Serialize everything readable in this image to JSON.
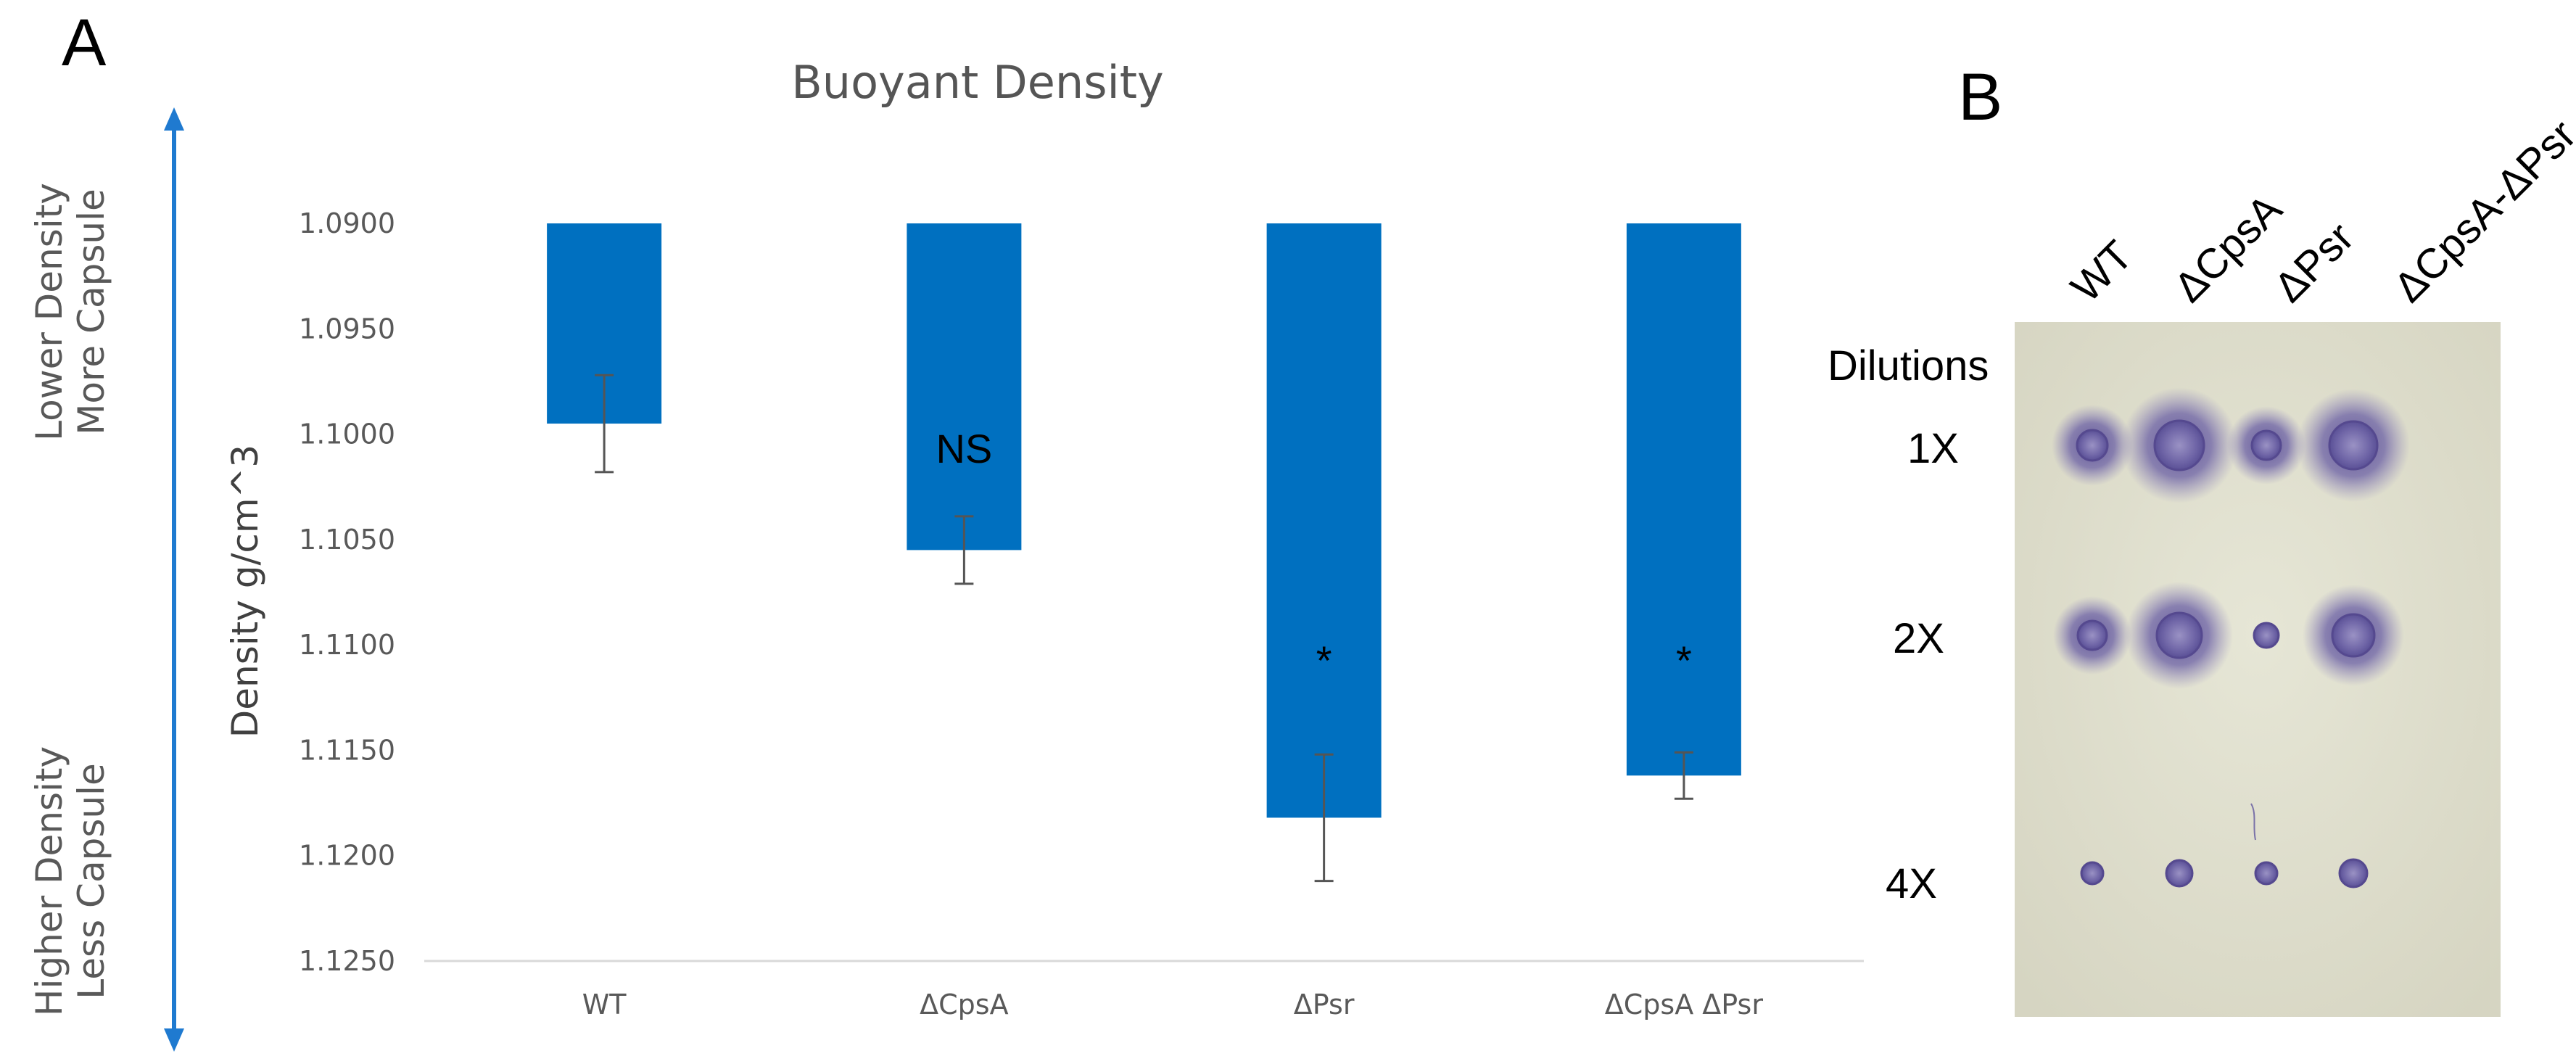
{
  "panel_a_label": "A",
  "panel_b_label": "B",
  "chart_data": {
    "type": "bar",
    "title": "Buoyant Density",
    "ylabel": "Density g/cm^3",
    "y_ticks": [
      "1.0900",
      "1.0950",
      "1.1000",
      "1.1050",
      "1.1100",
      "1.1150",
      "1.1200",
      "1.1250"
    ],
    "ylim": [
      1.09,
      1.125
    ],
    "y_inverted": true,
    "categories": [
      "WT",
      "ΔCpsA",
      "ΔPsr",
      "ΔCpsA ΔPsr"
    ],
    "values": [
      1.0995,
      1.1055,
      1.1182,
      1.1162
    ],
    "errors": [
      0.0023,
      0.0016,
      0.003,
      0.0011
    ],
    "annotations": [
      "",
      "NS",
      "*",
      "*"
    ],
    "bar_color": "#0070C0",
    "top_annotation": [
      "Lower Density",
      "More Capsule"
    ],
    "bottom_annotation": [
      "Higher Density",
      "Less Capsule"
    ],
    "arrow_color": "#1F7AD0"
  },
  "panel_b": {
    "columns": [
      "WT",
      "ΔCpsA",
      "ΔPsr",
      "ΔCpsA-ΔPsr"
    ],
    "rows_header": "Dilutions",
    "rows": [
      "1X",
      "2X",
      "4X"
    ]
  }
}
